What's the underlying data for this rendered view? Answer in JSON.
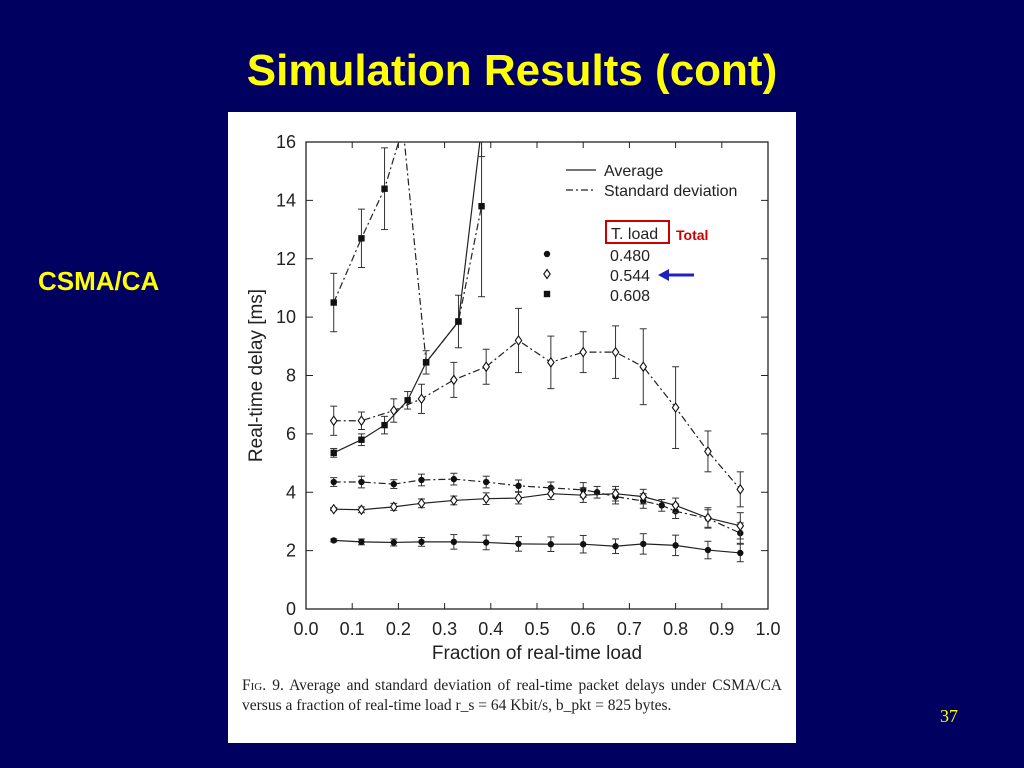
{
  "slide": {
    "title": "Simulation Results (cont)",
    "side_label": "CSMA/CA",
    "page_number": "37",
    "annotation_label": "Total"
  },
  "caption": {
    "fig": "Fig. 9.",
    "text": "Average and standard deviation of real-time packet delays under CSMA/CA versus a fraction of real-time load r_s = 64 Kbit/s, b_pkt = 825 bytes."
  },
  "colors": {
    "background": "#000060",
    "title": "#ffff00",
    "annotation": "#cc0000",
    "arrow": "#2020c0"
  },
  "chart_data": {
    "type": "line",
    "xlabel": "Fraction of real-time load",
    "ylabel": "Real-time delay [ms]",
    "xlim": [
      0.0,
      1.0
    ],
    "ylim": [
      0,
      16
    ],
    "x_ticks": [
      "0.0",
      "0.1",
      "0.2",
      "0.3",
      "0.4",
      "0.5",
      "0.6",
      "0.7",
      "0.8",
      "0.9",
      "1.0"
    ],
    "y_ticks": [
      "0",
      "2",
      "4",
      "6",
      "8",
      "10",
      "12",
      "14",
      "16"
    ],
    "grid": false,
    "legend": {
      "placement": "top-right",
      "line_styles": [
        {
          "style": "solid",
          "label": "Average"
        },
        {
          "style": "dash-dot",
          "label": "Standard deviation"
        }
      ],
      "header": "T. load",
      "markers": [
        {
          "marker": "circle",
          "label": "0.480"
        },
        {
          "marker": "diamond",
          "label": "0.544"
        },
        {
          "marker": "square",
          "label": "0.608"
        }
      ]
    },
    "series": [
      {
        "name": "0.480",
        "stat": "Average",
        "marker": "circle",
        "style": "solid",
        "x": [
          0.06,
          0.12,
          0.19,
          0.25,
          0.32,
          0.39,
          0.46,
          0.53,
          0.6,
          0.67,
          0.73,
          0.8,
          0.87,
          0.94
        ],
        "y": [
          2.35,
          2.3,
          2.28,
          2.3,
          2.3,
          2.28,
          2.23,
          2.22,
          2.22,
          2.15,
          2.23,
          2.18,
          2.02,
          1.92
        ],
        "err": [
          0.05,
          0.1,
          0.12,
          0.15,
          0.25,
          0.25,
          0.25,
          0.25,
          0.3,
          0.25,
          0.35,
          0.35,
          0.3,
          0.3
        ]
      },
      {
        "name": "0.480",
        "stat": "Standard deviation",
        "marker": "circle",
        "style": "dash-dot",
        "x": [
          0.06,
          0.12,
          0.19,
          0.25,
          0.32,
          0.39,
          0.46,
          0.53,
          0.6,
          0.63,
          0.67,
          0.73,
          0.77,
          0.8,
          0.87,
          0.94
        ],
        "y": [
          4.35,
          4.35,
          4.28,
          4.42,
          4.45,
          4.35,
          4.22,
          4.15,
          4.08,
          4.0,
          3.85,
          3.7,
          3.55,
          3.35,
          3.1,
          2.6
        ],
        "err": [
          0.15,
          0.2,
          0.15,
          0.2,
          0.2,
          0.2,
          0.2,
          0.2,
          0.25,
          0.2,
          0.25,
          0.25,
          0.2,
          0.25,
          0.3,
          0.35
        ]
      },
      {
        "name": "0.544",
        "stat": "Average",
        "marker": "diamond",
        "style": "solid",
        "x": [
          0.06,
          0.12,
          0.19,
          0.25,
          0.32,
          0.39,
          0.46,
          0.53,
          0.6,
          0.67,
          0.73,
          0.8,
          0.87,
          0.94
        ],
        "y": [
          3.42,
          3.4,
          3.5,
          3.62,
          3.72,
          3.78,
          3.8,
          3.95,
          3.9,
          3.95,
          3.85,
          3.55,
          3.12,
          2.85
        ],
        "err": [
          0.05,
          0.1,
          0.12,
          0.15,
          0.15,
          0.2,
          0.2,
          0.2,
          0.25,
          0.25,
          0.25,
          0.25,
          0.35,
          0.45
        ]
      },
      {
        "name": "0.544",
        "stat": "Standard deviation",
        "marker": "diamond",
        "style": "dash-dot",
        "x": [
          0.06,
          0.12,
          0.19,
          0.25,
          0.32,
          0.39,
          0.46,
          0.53,
          0.6,
          0.67,
          0.73,
          0.8,
          0.87,
          0.94
        ],
        "y": [
          6.45,
          6.45,
          6.8,
          7.2,
          7.85,
          8.3,
          9.2,
          8.45,
          8.8,
          8.8,
          8.3,
          6.9,
          5.4,
          4.1
        ],
        "err": [
          0.5,
          0.3,
          0.4,
          0.5,
          0.6,
          0.6,
          1.1,
          0.9,
          0.7,
          0.9,
          1.3,
          1.4,
          0.7,
          0.6
        ]
      },
      {
        "name": "0.608",
        "stat": "Average",
        "marker": "square",
        "style": "solid",
        "x": [
          0.06,
          0.12,
          0.17,
          0.22,
          0.26,
          0.33,
          0.38
        ],
        "y": [
          5.35,
          5.8,
          6.3,
          7.15,
          8.45,
          9.85,
          16.5
        ],
        "err": [
          0.15,
          0.2,
          0.3,
          0.3,
          0.4,
          0.9,
          1.0
        ]
      },
      {
        "name": "0.608",
        "stat": "Standard deviation",
        "marker": "square",
        "style": "dash-dot",
        "x": [
          0.06,
          0.12,
          0.17,
          0.21,
          0.26,
          0.33,
          0.38
        ],
        "y": [
          10.5,
          12.7,
          14.4,
          16.5,
          8.45,
          9.85,
          13.8
        ],
        "err": [
          1.0,
          1.0,
          1.4,
          0,
          0,
          0,
          3.1
        ]
      }
    ]
  }
}
